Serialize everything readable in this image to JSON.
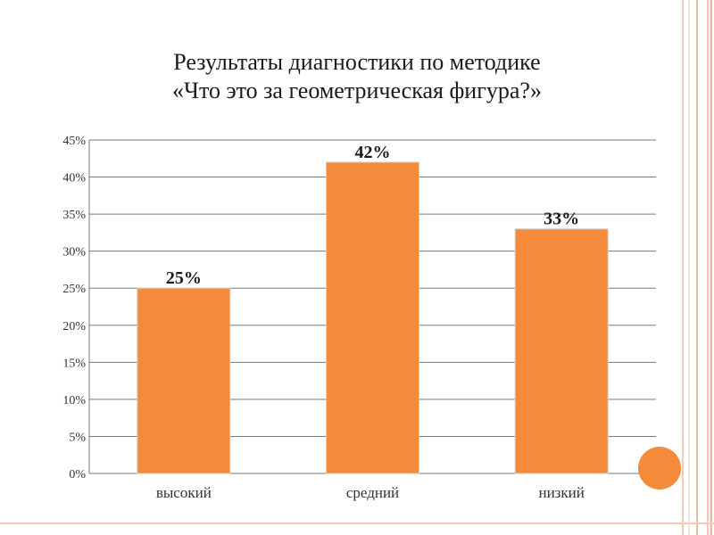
{
  "slide": {
    "title_line1": "Результаты диагностики по методике",
    "title_line2": "«Что это за геометрическая фигура?»"
  },
  "chart_data": {
    "type": "bar",
    "title": "Результаты диагностики по методике «Что это за геометрическая фигура?»",
    "categories": [
      "высокий",
      "средний",
      "низкий"
    ],
    "values": [
      25,
      42,
      33
    ],
    "value_labels": [
      "25%",
      "42%",
      "33%"
    ],
    "ylim": [
      0,
      45
    ],
    "yticks": [
      "0%",
      "5%",
      "10%",
      "15%",
      "20%",
      "25%",
      "30%",
      "35%",
      "40%",
      "45%"
    ],
    "grid": true,
    "bar_color": "#f58a3a",
    "bar_edge_color": "#d0d0d0"
  },
  "colors": {
    "accent": "#f58a3a",
    "decor": "#f7c9b6"
  }
}
